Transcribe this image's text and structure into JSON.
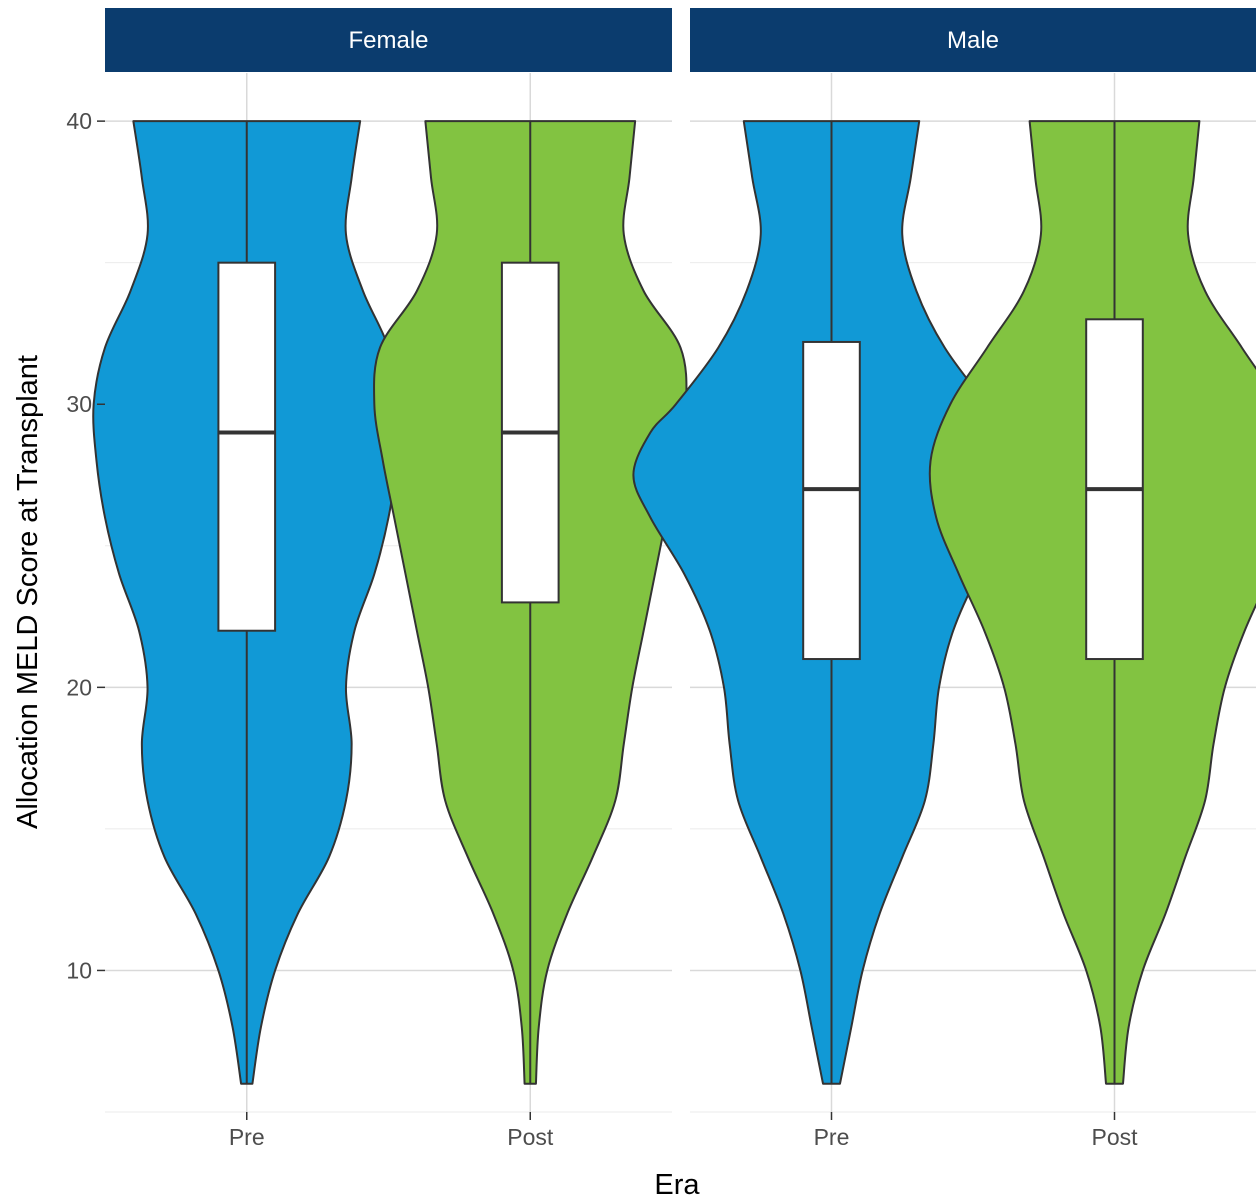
{
  "chart_data": {
    "type": "violin",
    "xlabel": "Era",
    "ylabel": "Allocation MELD Score at Transplant",
    "ylim": [
      5,
      41.7
    ],
    "y_ticks": [
      10,
      20,
      30,
      40
    ],
    "categories": [
      "Pre",
      "Post"
    ],
    "grid": true,
    "legend": "none",
    "colors": {
      "Pre": "#1199d6",
      "Post": "#82c341",
      "strip": "#0b3c6e",
      "outline": "#333333"
    },
    "facets": [
      {
        "label": "Female",
        "groups": [
          {
            "era": "Pre",
            "box": {
              "q1": 22,
              "median": 29,
              "q3": 35,
              "whisker_low": 6,
              "whisker_high": 40
            },
            "violin": {
              "y": [
                6,
                8,
                10,
                12,
                14,
                16,
                18,
                20,
                22,
                24,
                26,
                28,
                30,
                32,
                34,
                36,
                38,
                40
              ],
              "halfwidth": [
                0.02,
                0.05,
                0.1,
                0.18,
                0.29,
                0.35,
                0.37,
                0.35,
                0.38,
                0.45,
                0.5,
                0.53,
                0.54,
                0.5,
                0.41,
                0.35,
                0.37,
                0.4
              ]
            }
          },
          {
            "era": "Post",
            "box": {
              "q1": 23,
              "median": 29,
              "q3": 35,
              "whisker_low": 6,
              "whisker_high": 40
            },
            "violin": {
              "y": [
                6,
                8,
                10,
                12,
                14,
                16,
                18,
                20,
                22,
                24,
                26,
                28,
                30,
                32,
                34,
                36,
                38,
                40
              ],
              "halfwidth": [
                0.02,
                0.03,
                0.06,
                0.13,
                0.22,
                0.3,
                0.33,
                0.36,
                0.4,
                0.44,
                0.48,
                0.52,
                0.55,
                0.53,
                0.4,
                0.33,
                0.35,
                0.37
              ]
            }
          }
        ]
      },
      {
        "label": "Male",
        "groups": [
          {
            "era": "Pre",
            "box": {
              "q1": 21,
              "median": 27,
              "q3": 32.2,
              "whisker_low": 6,
              "whisker_high": 40
            },
            "violin": {
              "y": [
                6,
                8,
                10,
                12,
                14,
                16,
                18,
                20,
                22,
                24,
                26,
                27.5,
                29,
                30,
                32,
                34,
                36,
                38,
                40
              ],
              "halfwidth": [
                0.03,
                0.07,
                0.11,
                0.17,
                0.25,
                0.33,
                0.36,
                0.38,
                0.43,
                0.52,
                0.64,
                0.7,
                0.64,
                0.55,
                0.4,
                0.3,
                0.25,
                0.28,
                0.31
              ]
            }
          },
          {
            "era": "Post",
            "box": {
              "q1": 21,
              "median": 27,
              "q3": 33,
              "whisker_low": 6,
              "whisker_high": 40
            },
            "violin": {
              "y": [
                6,
                8,
                10,
                12,
                14,
                16,
                18,
                20,
                22,
                24,
                26,
                28,
                30,
                32,
                34,
                36,
                38,
                40
              ],
              "halfwidth": [
                0.03,
                0.05,
                0.1,
                0.18,
                0.25,
                0.32,
                0.35,
                0.39,
                0.46,
                0.55,
                0.63,
                0.65,
                0.58,
                0.45,
                0.32,
                0.26,
                0.28,
                0.3
              ]
            }
          }
        ]
      }
    ]
  }
}
